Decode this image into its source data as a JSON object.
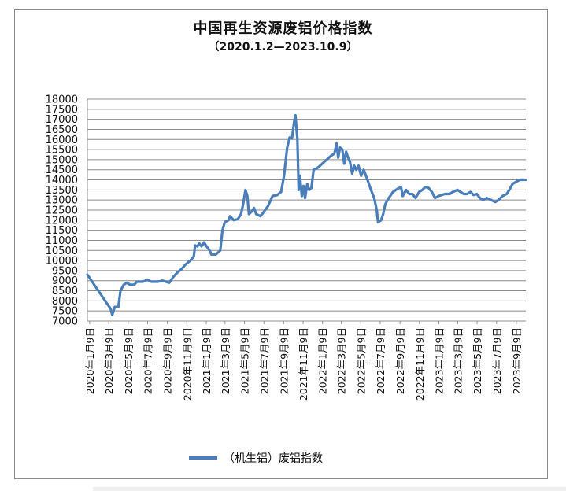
{
  "chart_data": {
    "type": "line",
    "title": "中国再生资源废铝价格指数",
    "subtitle": "（2020.1.2—2023.10.9）",
    "xlabel": "",
    "ylabel": "",
    "ylim": [
      7000,
      18000
    ],
    "yticks": [
      7000,
      7500,
      8000,
      8500,
      9000,
      9500,
      10000,
      10500,
      11000,
      11500,
      12000,
      12500,
      13000,
      13500,
      14000,
      14500,
      15000,
      15500,
      16000,
      16500,
      17000,
      17500,
      18000
    ],
    "x_range": [
      "2020-01-02",
      "2023-10-09"
    ],
    "x_tick_dates": [
      "2020-01-09",
      "2020-03-09",
      "2020-05-09",
      "2020-07-09",
      "2020-09-09",
      "2020-11-09",
      "2021-01-09",
      "2021-03-09",
      "2021-05-09",
      "2021-07-09",
      "2021-09-09",
      "2021-11-09",
      "2022-01-09",
      "2022-03-09",
      "2022-05-09",
      "2022-07-09",
      "2022-09-09",
      "2022-11-09",
      "2023-01-09",
      "2023-03-09",
      "2023-05-09",
      "2023-07-09",
      "2023-09-09"
    ],
    "x_tick_labels": [
      "2020年1月9日",
      "2020年3月9日",
      "2020年5月9日",
      "2020年7月9日",
      "2020年9月9日",
      "2020年11月9日",
      "2021年1月9日",
      "2021年3月9日",
      "2021年5月9日",
      "2021年7月9日",
      "2021年9月9日",
      "2021年11月9日",
      "2022年1月9日",
      "2022年3月9日",
      "2022年5月9日",
      "2022年7月9日",
      "2022年9月9日",
      "2022年11月9日",
      "2023年1月9日",
      "2023年3月9日",
      "2023年5月9日",
      "2023年7月9日",
      "2023年9月9日"
    ],
    "grid": true,
    "legend_position": "bottom",
    "color": "#4a7ebb",
    "series": [
      {
        "name": "（机生铝）废铝指数",
        "points": [
          [
            "2020-01-02",
            9300
          ],
          [
            "2020-03-15",
            7600
          ],
          [
            "2020-03-20",
            7300
          ],
          [
            "2020-03-28",
            7700
          ],
          [
            "2020-04-08",
            7700
          ],
          [
            "2020-04-15",
            8500
          ],
          [
            "2020-04-25",
            8800
          ],
          [
            "2020-05-05",
            8900
          ],
          [
            "2020-05-15",
            8800
          ],
          [
            "2020-05-28",
            8800
          ],
          [
            "2020-06-05",
            8950
          ],
          [
            "2020-06-25",
            8950
          ],
          [
            "2020-07-08",
            9050
          ],
          [
            "2020-07-20",
            8950
          ],
          [
            "2020-08-10",
            8950
          ],
          [
            "2020-08-25",
            9000
          ],
          [
            "2020-09-15",
            8900
          ],
          [
            "2020-09-28",
            9200
          ],
          [
            "2020-10-10",
            9400
          ],
          [
            "2020-10-25",
            9600
          ],
          [
            "2020-11-05",
            9800
          ],
          [
            "2020-11-20",
            10000
          ],
          [
            "2020-12-01",
            10200
          ],
          [
            "2020-12-05",
            10750
          ],
          [
            "2020-12-12",
            10700
          ],
          [
            "2020-12-18",
            10850
          ],
          [
            "2020-12-25",
            10700
          ],
          [
            "2021-01-02",
            10900
          ],
          [
            "2021-01-10",
            10700
          ],
          [
            "2021-01-20",
            10500
          ],
          [
            "2021-01-25",
            10300
          ],
          [
            "2021-02-08",
            10300
          ],
          [
            "2021-02-22",
            10500
          ],
          [
            "2021-03-01",
            11500
          ],
          [
            "2021-03-08",
            11900
          ],
          [
            "2021-03-20",
            12000
          ],
          [
            "2021-03-25",
            12200
          ],
          [
            "2021-04-05",
            12000
          ],
          [
            "2021-04-18",
            12050
          ],
          [
            "2021-04-28",
            12300
          ],
          [
            "2021-05-05",
            12800
          ],
          [
            "2021-05-12",
            13500
          ],
          [
            "2021-05-18",
            13200
          ],
          [
            "2021-05-23",
            12300
          ],
          [
            "2021-05-30",
            12400
          ],
          [
            "2021-06-08",
            12600
          ],
          [
            "2021-06-15",
            12300
          ],
          [
            "2021-06-28",
            12200
          ],
          [
            "2021-07-08",
            12400
          ],
          [
            "2021-07-22",
            12700
          ],
          [
            "2021-08-05",
            13200
          ],
          [
            "2021-08-20",
            13250
          ],
          [
            "2021-09-01",
            13400
          ],
          [
            "2021-09-10",
            14200
          ],
          [
            "2021-09-20",
            15600
          ],
          [
            "2021-09-28",
            16100
          ],
          [
            "2021-10-05",
            16050
          ],
          [
            "2021-10-12",
            16900
          ],
          [
            "2021-10-16",
            17200
          ],
          [
            "2021-10-22",
            16000
          ],
          [
            "2021-10-26",
            13500
          ],
          [
            "2021-10-30",
            14200
          ],
          [
            "2021-11-05",
            13200
          ],
          [
            "2021-11-10",
            13700
          ],
          [
            "2021-11-15",
            13100
          ],
          [
            "2021-11-22",
            13800
          ],
          [
            "2021-11-28",
            13500
          ],
          [
            "2021-12-05",
            13600
          ],
          [
            "2021-12-12",
            14500
          ],
          [
            "2021-12-25",
            14600
          ],
          [
            "2022-01-08",
            14800
          ],
          [
            "2022-01-22",
            15000
          ],
          [
            "2022-02-05",
            15200
          ],
          [
            "2022-02-15",
            15300
          ],
          [
            "2022-02-22",
            15800
          ],
          [
            "2022-02-27",
            15100
          ],
          [
            "2022-03-05",
            15600
          ],
          [
            "2022-03-12",
            15500
          ],
          [
            "2022-03-18",
            14800
          ],
          [
            "2022-03-24",
            15400
          ],
          [
            "2022-03-30",
            15100
          ],
          [
            "2022-04-05",
            14900
          ],
          [
            "2022-04-12",
            14300
          ],
          [
            "2022-04-18",
            14700
          ],
          [
            "2022-04-25",
            14500
          ],
          [
            "2022-05-02",
            14700
          ],
          [
            "2022-05-10",
            14200
          ],
          [
            "2022-05-18",
            14500
          ],
          [
            "2022-05-30",
            14000
          ],
          [
            "2022-06-10",
            13500
          ],
          [
            "2022-06-20",
            13100
          ],
          [
            "2022-06-28",
            12500
          ],
          [
            "2022-07-02",
            11900
          ],
          [
            "2022-07-12",
            12000
          ],
          [
            "2022-07-18",
            12300
          ],
          [
            "2022-07-25",
            12800
          ],
          [
            "2022-08-05",
            13100
          ],
          [
            "2022-08-18",
            13400
          ],
          [
            "2022-09-01",
            13550
          ],
          [
            "2022-09-12",
            13650
          ],
          [
            "2022-09-18",
            13200
          ],
          [
            "2022-09-28",
            13500
          ],
          [
            "2022-10-08",
            13300
          ],
          [
            "2022-10-18",
            13300
          ],
          [
            "2022-10-28",
            13100
          ],
          [
            "2022-11-08",
            13400
          ],
          [
            "2022-11-18",
            13500
          ],
          [
            "2022-11-28",
            13650
          ],
          [
            "2022-12-08",
            13600
          ],
          [
            "2022-12-18",
            13400
          ],
          [
            "2022-12-28",
            13100
          ],
          [
            "2023-01-08",
            13200
          ],
          [
            "2023-01-28",
            13300
          ],
          [
            "2023-02-12",
            13300
          ],
          [
            "2023-02-22",
            13400
          ],
          [
            "2023-03-08",
            13500
          ],
          [
            "2023-03-18",
            13400
          ],
          [
            "2023-03-28",
            13300
          ],
          [
            "2023-04-08",
            13300
          ],
          [
            "2023-04-18",
            13400
          ],
          [
            "2023-04-28",
            13250
          ],
          [
            "2023-05-08",
            13300
          ],
          [
            "2023-05-18",
            13100
          ],
          [
            "2023-05-28",
            13000
          ],
          [
            "2023-06-08",
            13100
          ],
          [
            "2023-06-22",
            13000
          ],
          [
            "2023-07-05",
            12900
          ],
          [
            "2023-07-15",
            13000
          ],
          [
            "2023-07-28",
            13200
          ],
          [
            "2023-08-10",
            13300
          ],
          [
            "2023-08-18",
            13500
          ],
          [
            "2023-08-28",
            13800
          ],
          [
            "2023-09-08",
            13900
          ],
          [
            "2023-09-20",
            14000
          ],
          [
            "2023-10-09",
            14000
          ]
        ]
      }
    ]
  }
}
